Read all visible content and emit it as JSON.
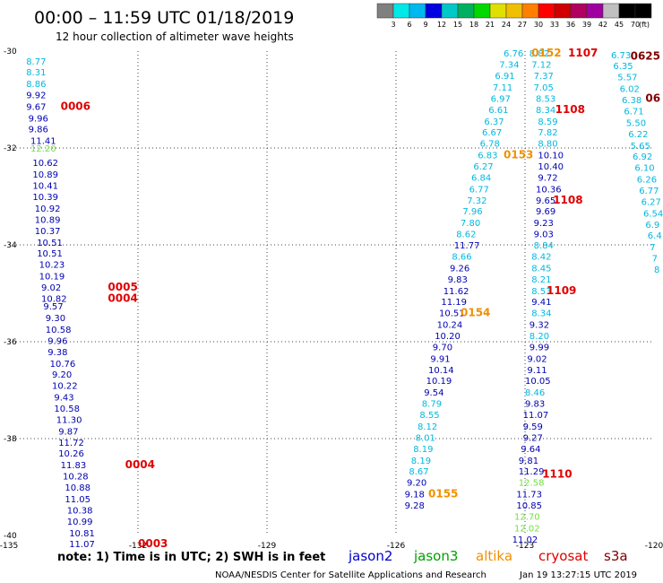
{
  "title": "00:00 – 11:59 UTC 01/18/2019",
  "subtitle": "12 hour collection of altimeter wave heights",
  "note": "note: 1) Time is in UTC; 2) SWH is in feet",
  "footer_left": "NOAA/NESDIS Center for Satellite Applications and Research",
  "footer_right": "Jan 19 13:27:15 UTC 2019",
  "colors": {
    "jason2": "#0000cc",
    "jason3": "#00a000",
    "altika": "#f09000",
    "cryosat": "#e00000",
    "s3a": "#800000",
    "c_cyan": "#00b8e0",
    "c_green": "#70e040",
    "c_navy": "#0000b0"
  },
  "legend": [
    {
      "label": "jason2",
      "color": "#0000cc"
    },
    {
      "label": "jason3",
      "color": "#00a000"
    },
    {
      "label": "altika",
      "color": "#f09000"
    },
    {
      "label": "cryosat",
      "color": "#e00000"
    },
    {
      "label": "s3a",
      "color": "#800000"
    }
  ],
  "color_scale": {
    "unit": "(ft)",
    "labels": [
      "3",
      "6",
      "9",
      "12",
      "15",
      "18",
      "21",
      "24",
      "27",
      "30",
      "33",
      "36",
      "39",
      "42",
      "45",
      "70"
    ],
    "colors": [
      "#808080",
      "#00e8e8",
      "#00b8f0",
      "#0000e0",
      "#00c8c8",
      "#00b060",
      "#00d800",
      "#e0e000",
      "#f0c000",
      "#ff8000",
      "#ff0000",
      "#d00000",
      "#b00060",
      "#a000a0",
      "#c0c0c0",
      "#000000",
      "#000000"
    ]
  },
  "chart_data": {
    "type": "scatter",
    "title": "00:00 – 11:59 UTC 01/18/2019",
    "subtitle": "12 hour collection of altimeter wave heights",
    "xlim": [
      -135,
      -120
    ],
    "ylim": [
      -40,
      -30
    ],
    "x_ticks": [
      -135,
      -132,
      -129,
      -126,
      -123,
      -120
    ],
    "y_ticks": [
      -30,
      -32,
      -34,
      -36,
      -38,
      -40
    ],
    "x_tick_labels": [
      "-135",
      "-132",
      "-129",
      "-126",
      "-123",
      "-120"
    ],
    "y_tick_labels": [
      "-30",
      "-32",
      "-34",
      "-36",
      "-38",
      "-40"
    ],
    "grid": true,
    "points": [
      {
        "lon": -134.6,
        "lat": -30.2,
        "v": "8.77",
        "c": "c_cyan"
      },
      {
        "lon": -134.6,
        "lat": -30.43,
        "v": "8.31",
        "c": "c_cyan"
      },
      {
        "lon": -134.6,
        "lat": -30.67,
        "v": "8.86",
        "c": "c_cyan"
      },
      {
        "lon": -134.6,
        "lat": -30.9,
        "v": "9.92",
        "c": "c_navy"
      },
      {
        "lon": -134.6,
        "lat": -31.14,
        "v": "9.67",
        "c": "c_navy"
      },
      {
        "lon": -134.55,
        "lat": -31.38,
        "v": "9.96",
        "c": "c_navy"
      },
      {
        "lon": -134.55,
        "lat": -31.6,
        "v": "9.86",
        "c": "c_navy"
      },
      {
        "lon": -134.5,
        "lat": -31.84,
        "v": "11.41",
        "c": "c_navy"
      },
      {
        "lon": -134.5,
        "lat": -32.0,
        "v": "12.20",
        "c": "c_green"
      },
      {
        "lon": -134.45,
        "lat": -32.3,
        "v": "10.62",
        "c": "c_navy"
      },
      {
        "lon": -134.45,
        "lat": -32.54,
        "v": "10.89",
        "c": "c_navy"
      },
      {
        "lon": -134.45,
        "lat": -32.77,
        "v": "10.41",
        "c": "c_navy"
      },
      {
        "lon": -134.45,
        "lat": -33.0,
        "v": "10.39",
        "c": "c_navy"
      },
      {
        "lon": -134.4,
        "lat": -33.24,
        "v": "10.92",
        "c": "c_navy"
      },
      {
        "lon": -134.4,
        "lat": -33.47,
        "v": "10.89",
        "c": "c_navy"
      },
      {
        "lon": -134.4,
        "lat": -33.7,
        "v": "10.37",
        "c": "c_navy"
      },
      {
        "lon": -134.35,
        "lat": -33.94,
        "v": "10.51",
        "c": "c_navy"
      },
      {
        "lon": -134.35,
        "lat": -34.17,
        "v": "10.51",
        "c": "c_navy"
      },
      {
        "lon": -134.3,
        "lat": -34.4,
        "v": "10.23",
        "c": "c_navy"
      },
      {
        "lon": -134.3,
        "lat": -34.64,
        "v": "10.19",
        "c": "c_navy"
      },
      {
        "lon": -134.25,
        "lat": -34.87,
        "v": "9.02",
        "c": "c_navy"
      },
      {
        "lon": -134.25,
        "lat": -35.1,
        "v": "10.82",
        "c": "c_navy"
      },
      {
        "lon": -134.2,
        "lat": -35.26,
        "v": "9.57",
        "c": "c_navy"
      },
      {
        "lon": -134.15,
        "lat": -35.5,
        "v": "9.30",
        "c": "c_navy"
      },
      {
        "lon": -134.15,
        "lat": -35.74,
        "v": "10.58",
        "c": "c_navy"
      },
      {
        "lon": -134.1,
        "lat": -35.97,
        "v": "9.96",
        "c": "c_navy"
      },
      {
        "lon": -134.1,
        "lat": -36.2,
        "v": "9.38",
        "c": "c_navy"
      },
      {
        "lon": -134.05,
        "lat": -36.44,
        "v": "10.76",
        "c": "c_navy"
      },
      {
        "lon": -134.0,
        "lat": -36.67,
        "v": "9.20",
        "c": "c_navy"
      },
      {
        "lon": -134.0,
        "lat": -36.9,
        "v": "10.22",
        "c": "c_navy"
      },
      {
        "lon": -133.95,
        "lat": -37.14,
        "v": "9.43",
        "c": "c_navy"
      },
      {
        "lon": -133.95,
        "lat": -37.37,
        "v": "10.58",
        "c": "c_navy"
      },
      {
        "lon": -133.9,
        "lat": -37.6,
        "v": "11.30",
        "c": "c_navy"
      },
      {
        "lon": -133.85,
        "lat": -37.84,
        "v": "9.87",
        "c": "c_navy"
      },
      {
        "lon": -133.85,
        "lat": -38.07,
        "v": "11.72",
        "c": "c_navy"
      },
      {
        "lon": -133.85,
        "lat": -38.3,
        "v": "10.26",
        "c": "c_navy"
      },
      {
        "lon": -133.8,
        "lat": -38.54,
        "v": "11.83",
        "c": "c_navy"
      },
      {
        "lon": -133.75,
        "lat": -38.77,
        "v": "10.28",
        "c": "c_navy"
      },
      {
        "lon": -133.7,
        "lat": -39.0,
        "v": "10.88",
        "c": "c_navy"
      },
      {
        "lon": -133.7,
        "lat": -39.24,
        "v": "11.05",
        "c": "c_navy"
      },
      {
        "lon": -133.65,
        "lat": -39.47,
        "v": "10.38",
        "c": "c_navy"
      },
      {
        "lon": -133.65,
        "lat": -39.7,
        "v": "10.99",
        "c": "c_navy"
      },
      {
        "lon": -133.6,
        "lat": -39.94,
        "v": "10.81",
        "c": "c_navy"
      },
      {
        "lon": -133.6,
        "lat": -40.17,
        "v": "11.07",
        "c": "c_navy"
      },
      {
        "lon": -123.5,
        "lat": -30.04,
        "v": "6.76",
        "c": "c_cyan"
      },
      {
        "lon": -123.6,
        "lat": -30.27,
        "v": "7.34",
        "c": "c_cyan"
      },
      {
        "lon": -123.7,
        "lat": -30.5,
        "v": "6.91",
        "c": "c_cyan"
      },
      {
        "lon": -123.75,
        "lat": -30.74,
        "v": "7.11",
        "c": "c_cyan"
      },
      {
        "lon": -123.8,
        "lat": -30.97,
        "v": "6.97",
        "c": "c_cyan"
      },
      {
        "lon": -123.85,
        "lat": -31.2,
        "v": "6.61",
        "c": "c_cyan"
      },
      {
        "lon": -123.95,
        "lat": -31.44,
        "v": "6.37",
        "c": "c_cyan"
      },
      {
        "lon": -124.0,
        "lat": -31.67,
        "v": "6.67",
        "c": "c_cyan"
      },
      {
        "lon": -124.05,
        "lat": -31.9,
        "v": "6.78",
        "c": "c_cyan"
      },
      {
        "lon": -124.1,
        "lat": -32.14,
        "v": "6.83",
        "c": "c_cyan"
      },
      {
        "lon": -124.2,
        "lat": -32.37,
        "v": "6.27",
        "c": "c_cyan"
      },
      {
        "lon": -124.25,
        "lat": -32.6,
        "v": "6.84",
        "c": "c_cyan"
      },
      {
        "lon": -124.3,
        "lat": -32.84,
        "v": "6.77",
        "c": "c_cyan"
      },
      {
        "lon": -124.35,
        "lat": -33.07,
        "v": "7.32",
        "c": "c_cyan"
      },
      {
        "lon": -124.45,
        "lat": -33.3,
        "v": "7.96",
        "c": "c_cyan"
      },
      {
        "lon": -124.5,
        "lat": -33.54,
        "v": "7.80",
        "c": "c_cyan"
      },
      {
        "lon": -124.6,
        "lat": -33.77,
        "v": "8.62",
        "c": "c_cyan"
      },
      {
        "lon": -124.65,
        "lat": -34.0,
        "v": "11.77",
        "c": "c_navy"
      },
      {
        "lon": -124.7,
        "lat": -34.23,
        "v": "8.66",
        "c": "c_cyan"
      },
      {
        "lon": -124.75,
        "lat": -34.47,
        "v": "9.26",
        "c": "c_navy"
      },
      {
        "lon": -124.8,
        "lat": -34.7,
        "v": "9.83",
        "c": "c_navy"
      },
      {
        "lon": -124.9,
        "lat": -34.94,
        "v": "11.62",
        "c": "c_navy"
      },
      {
        "lon": -124.95,
        "lat": -35.17,
        "v": "11.19",
        "c": "c_navy"
      },
      {
        "lon": -125.0,
        "lat": -35.4,
        "v": "10.51",
        "c": "c_navy"
      },
      {
        "lon": -125.05,
        "lat": -35.64,
        "v": "10.24",
        "c": "c_navy"
      },
      {
        "lon": -125.1,
        "lat": -35.87,
        "v": "10.20",
        "c": "c_navy"
      },
      {
        "lon": -125.15,
        "lat": -36.1,
        "v": "9.70",
        "c": "c_navy"
      },
      {
        "lon": -125.2,
        "lat": -36.34,
        "v": "9.91",
        "c": "c_navy"
      },
      {
        "lon": -125.25,
        "lat": -36.57,
        "v": "10.14",
        "c": "c_navy"
      },
      {
        "lon": -125.3,
        "lat": -36.8,
        "v": "10.19",
        "c": "c_navy"
      },
      {
        "lon": -125.35,
        "lat": -37.04,
        "v": "9.54",
        "c": "c_navy"
      },
      {
        "lon": -125.4,
        "lat": -37.27,
        "v": "8.79",
        "c": "c_cyan"
      },
      {
        "lon": -125.45,
        "lat": -37.5,
        "v": "8.55",
        "c": "c_cyan"
      },
      {
        "lon": -125.5,
        "lat": -37.74,
        "v": "8.12",
        "c": "c_cyan"
      },
      {
        "lon": -125.55,
        "lat": -37.97,
        "v": "8.01",
        "c": "c_cyan"
      },
      {
        "lon": -125.6,
        "lat": -38.2,
        "v": "8.19",
        "c": "c_cyan"
      },
      {
        "lon": -125.65,
        "lat": -38.44,
        "v": "8.19",
        "c": "c_cyan"
      },
      {
        "lon": -125.7,
        "lat": -38.67,
        "v": "8.67",
        "c": "c_cyan"
      },
      {
        "lon": -125.75,
        "lat": -38.9,
        "v": "9.20",
        "c": "c_navy"
      },
      {
        "lon": -125.8,
        "lat": -39.14,
        "v": "9.18",
        "c": "c_navy"
      },
      {
        "lon": -125.8,
        "lat": -39.37,
        "v": "9.28",
        "c": "c_navy"
      },
      {
        "lon": -122.9,
        "lat": -30.04,
        "v": "8.82",
        "c": "c_cyan"
      },
      {
        "lon": -122.85,
        "lat": -30.27,
        "v": "7.12",
        "c": "c_cyan"
      },
      {
        "lon": -122.8,
        "lat": -30.5,
        "v": "7.37",
        "c": "c_cyan"
      },
      {
        "lon": -122.8,
        "lat": -30.74,
        "v": "7.05",
        "c": "c_cyan"
      },
      {
        "lon": -122.75,
        "lat": -30.97,
        "v": "8.53",
        "c": "c_cyan"
      },
      {
        "lon": -122.75,
        "lat": -31.2,
        "v": "8.34",
        "c": "c_cyan"
      },
      {
        "lon": -122.7,
        "lat": -31.44,
        "v": "8.59",
        "c": "c_cyan"
      },
      {
        "lon": -122.7,
        "lat": -31.67,
        "v": "7.82",
        "c": "c_cyan"
      },
      {
        "lon": -122.7,
        "lat": -31.9,
        "v": "8.80",
        "c": "c_cyan"
      },
      {
        "lon": -122.7,
        "lat": -32.14,
        "v": "10.10",
        "c": "c_navy"
      },
      {
        "lon": -122.7,
        "lat": -32.37,
        "v": "10.40",
        "c": "c_navy"
      },
      {
        "lon": -122.7,
        "lat": -32.6,
        "v": "9.72",
        "c": "c_navy"
      },
      {
        "lon": -122.75,
        "lat": -32.84,
        "v": "10.36",
        "c": "c_navy"
      },
      {
        "lon": -122.75,
        "lat": -33.07,
        "v": "9.65",
        "c": "c_navy"
      },
      {
        "lon": -122.75,
        "lat": -33.3,
        "v": "9.69",
        "c": "c_navy"
      },
      {
        "lon": -122.8,
        "lat": -33.54,
        "v": "9.23",
        "c": "c_navy"
      },
      {
        "lon": -122.8,
        "lat": -33.77,
        "v": "9.03",
        "c": "c_navy"
      },
      {
        "lon": -122.8,
        "lat": -34.0,
        "v": "8.84",
        "c": "c_cyan"
      },
      {
        "lon": -122.85,
        "lat": -34.23,
        "v": "8.42",
        "c": "c_cyan"
      },
      {
        "lon": -122.85,
        "lat": -34.47,
        "v": "8.45",
        "c": "c_cyan"
      },
      {
        "lon": -122.85,
        "lat": -34.7,
        "v": "8.21",
        "c": "c_cyan"
      },
      {
        "lon": -122.85,
        "lat": -34.94,
        "v": "8.53",
        "c": "c_cyan"
      },
      {
        "lon": -122.85,
        "lat": -35.17,
        "v": "9.41",
        "c": "c_navy"
      },
      {
        "lon": -122.85,
        "lat": -35.4,
        "v": "8.34",
        "c": "c_cyan"
      },
      {
        "lon": -122.9,
        "lat": -35.64,
        "v": "9.32",
        "c": "c_navy"
      },
      {
        "lon": -122.9,
        "lat": -35.87,
        "v": "8.20",
        "c": "c_cyan"
      },
      {
        "lon": -122.9,
        "lat": -36.1,
        "v": "9.99",
        "c": "c_navy"
      },
      {
        "lon": -122.95,
        "lat": -36.34,
        "v": "9.02",
        "c": "c_navy"
      },
      {
        "lon": -122.95,
        "lat": -36.57,
        "v": "9.11",
        "c": "c_navy"
      },
      {
        "lon": -123.0,
        "lat": -36.8,
        "v": "10.05",
        "c": "c_navy"
      },
      {
        "lon": -123.0,
        "lat": -37.04,
        "v": "8.46",
        "c": "c_cyan"
      },
      {
        "lon": -123.0,
        "lat": -37.27,
        "v": "9.83",
        "c": "c_navy"
      },
      {
        "lon": -123.05,
        "lat": -37.5,
        "v": "11.07",
        "c": "c_navy"
      },
      {
        "lon": -123.05,
        "lat": -37.74,
        "v": "9.59",
        "c": "c_navy"
      },
      {
        "lon": -123.05,
        "lat": -37.97,
        "v": "9.27",
        "c": "c_navy"
      },
      {
        "lon": -123.1,
        "lat": -38.2,
        "v": "9.64",
        "c": "c_navy"
      },
      {
        "lon": -123.15,
        "lat": -38.44,
        "v": "9.81",
        "c": "c_navy"
      },
      {
        "lon": -123.15,
        "lat": -38.67,
        "v": "11.29",
        "c": "c_navy"
      },
      {
        "lon": -123.15,
        "lat": -38.9,
        "v": "12.58",
        "c": "c_green"
      },
      {
        "lon": -123.2,
        "lat": -39.14,
        "v": "11.73",
        "c": "c_navy"
      },
      {
        "lon": -123.2,
        "lat": -39.37,
        "v": "10.85",
        "c": "c_navy"
      },
      {
        "lon": -123.25,
        "lat": -39.6,
        "v": "12.70",
        "c": "c_green"
      },
      {
        "lon": -123.25,
        "lat": -39.84,
        "v": "12.02",
        "c": "c_green"
      },
      {
        "lon": -123.3,
        "lat": -40.07,
        "v": "11.02",
        "c": "c_navy"
      },
      {
        "lon": -121.0,
        "lat": -30.07,
        "v": "6.73",
        "c": "c_cyan"
      },
      {
        "lon": -120.95,
        "lat": -30.3,
        "v": "6.35",
        "c": "c_cyan"
      },
      {
        "lon": -120.85,
        "lat": -30.53,
        "v": "5.57",
        "c": "c_cyan"
      },
      {
        "lon": -120.8,
        "lat": -30.77,
        "v": "6.02",
        "c": "c_cyan"
      },
      {
        "lon": -120.75,
        "lat": -31.0,
        "v": "6.38",
        "c": "c_cyan"
      },
      {
        "lon": -120.7,
        "lat": -31.23,
        "v": "6.71",
        "c": "c_cyan"
      },
      {
        "lon": -120.65,
        "lat": -31.47,
        "v": "5.50",
        "c": "c_cyan"
      },
      {
        "lon": -120.6,
        "lat": -31.7,
        "v": "6.22",
        "c": "c_cyan"
      },
      {
        "lon": -120.55,
        "lat": -31.94,
        "v": "5.65",
        "c": "c_cyan"
      },
      {
        "lon": -120.5,
        "lat": -32.17,
        "v": "6.92",
        "c": "c_cyan"
      },
      {
        "lon": -120.45,
        "lat": -32.4,
        "v": "6.10",
        "c": "c_cyan"
      },
      {
        "lon": -120.4,
        "lat": -32.64,
        "v": "6.26",
        "c": "c_cyan"
      },
      {
        "lon": -120.35,
        "lat": -32.87,
        "v": "6.77",
        "c": "c_cyan"
      },
      {
        "lon": -120.3,
        "lat": -33.1,
        "v": "6.27",
        "c": "c_cyan"
      },
      {
        "lon": -120.25,
        "lat": -33.34,
        "v": "6.54",
        "c": "c_cyan"
      },
      {
        "lon": -120.2,
        "lat": -33.57,
        "v": "6.9",
        "c": "c_cyan"
      },
      {
        "lon": -120.15,
        "lat": -33.8,
        "v": "6.4",
        "c": "c_cyan"
      },
      {
        "lon": -120.1,
        "lat": -34.04,
        "v": "7",
        "c": "c_cyan"
      },
      {
        "lon": -120.05,
        "lat": -34.27,
        "v": "7",
        "c": "c_cyan"
      },
      {
        "lon": -120.0,
        "lat": -34.5,
        "v": "8",
        "c": "c_cyan"
      }
    ],
    "time_labels": [
      {
        "lon": -133.8,
        "lat": -31.14,
        "t": "0006",
        "c": "cryosat"
      },
      {
        "lon": -132.7,
        "lat": -34.87,
        "t": "0005",
        "c": "cryosat"
      },
      {
        "lon": -132.7,
        "lat": -35.1,
        "t": "0004",
        "c": "cryosat"
      },
      {
        "lon": -132.3,
        "lat": -38.54,
        "t": "0004",
        "c": "cryosat"
      },
      {
        "lon": -132.0,
        "lat": -40.17,
        "t": "0003",
        "c": "cryosat"
      },
      {
        "lon": -122.85,
        "lat": -30.04,
        "t": "0152",
        "c": "altika"
      },
      {
        "lon": -123.5,
        "lat": -32.14,
        "t": "0153",
        "c": "altika"
      },
      {
        "lon": -124.5,
        "lat": -35.4,
        "t": "0154",
        "c": "altika"
      },
      {
        "lon": -125.25,
        "lat": -39.14,
        "t": "0155",
        "c": "altika"
      },
      {
        "lon": -122.0,
        "lat": -30.04,
        "t": "1107",
        "c": "cryosat"
      },
      {
        "lon": -122.3,
        "lat": -31.2,
        "t": "1108",
        "c": "cryosat"
      },
      {
        "lon": -122.35,
        "lat": -33.07,
        "t": "1108",
        "c": "cryosat"
      },
      {
        "lon": -122.5,
        "lat": -34.94,
        "t": "1109",
        "c": "cryosat"
      },
      {
        "lon": -122.6,
        "lat": -38.73,
        "t": "1110",
        "c": "cryosat"
      },
      {
        "lon": -120.55,
        "lat": -30.1,
        "t": "0625",
        "c": "s3a"
      },
      {
        "lon": -120.2,
        "lat": -30.97,
        "t": "06",
        "c": "s3a"
      }
    ]
  }
}
